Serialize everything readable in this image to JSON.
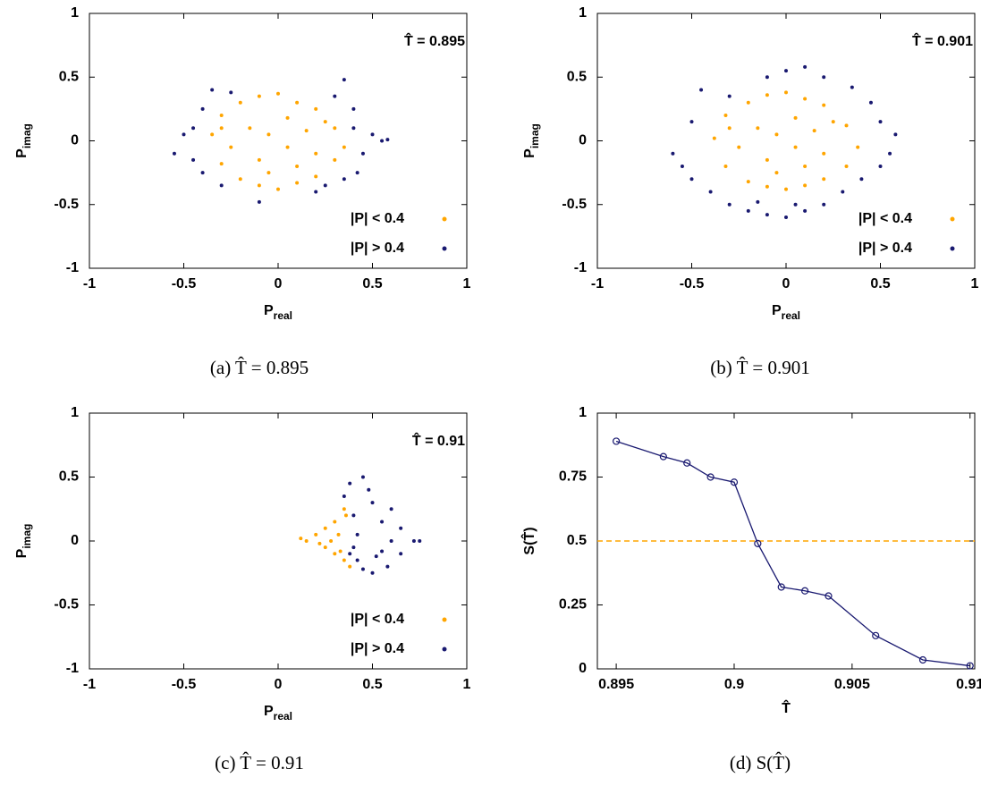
{
  "chart_data": [
    {
      "type": "scatter",
      "annotation": "T̂ = 0.895",
      "caption": "(a) T̂ = 0.895",
      "xlabel": {
        "base": "P",
        "subscript": "real"
      },
      "ylabel": {
        "base": "P",
        "subscript": "imag"
      },
      "xlim": [
        -1,
        1
      ],
      "ylim": [
        -1,
        1
      ],
      "xticks": [
        -1,
        -0.5,
        0,
        0.5,
        1
      ],
      "yticks": [
        -1,
        -0.5,
        0,
        0.5,
        1
      ],
      "legend": "lower right",
      "series": [
        {
          "name": "|P| < 0.4",
          "color": "#ffa500",
          "x": [
            -0.35,
            -0.3,
            -0.2,
            -0.1,
            0,
            0.1,
            0.2,
            0.3,
            0.35,
            0.3,
            0.2,
            0.1,
            0,
            -0.1,
            -0.2,
            -0.3,
            -0.15,
            -0.05,
            0.05,
            0.15,
            -0.25,
            0.2,
            -0.1,
            0.05,
            -0.05,
            0.25,
            -0.3,
            0.1
          ],
          "y": [
            0.05,
            0.2,
            0.3,
            0.35,
            0.37,
            0.3,
            0.25,
            0.1,
            -0.05,
            -0.15,
            -0.28,
            -0.33,
            -0.38,
            -0.35,
            -0.3,
            -0.18,
            0.1,
            0.05,
            -0.05,
            0.08,
            -0.05,
            -0.1,
            -0.15,
            0.18,
            -0.25,
            0.15,
            0.1,
            -0.2
          ]
        },
        {
          "name": "|P| > 0.4",
          "color": "#191970",
          "x": [
            -0.55,
            -0.5,
            -0.45,
            -0.4,
            -0.35,
            -0.3,
            -0.25,
            0.2,
            0.3,
            0.35,
            0.4,
            0.45,
            0.5,
            0.55,
            0.58,
            0.42,
            0.35,
            -0.1,
            -0.4,
            0.4,
            0.25,
            -0.45
          ],
          "y": [
            -0.1,
            0.05,
            -0.15,
            0.25,
            0.4,
            -0.35,
            0.38,
            -0.4,
            0.35,
            0.48,
            0.1,
            -0.1,
            0.05,
            0,
            0.01,
            -0.25,
            -0.3,
            -0.48,
            -0.25,
            0.25,
            -0.35,
            0.1
          ]
        }
      ]
    },
    {
      "type": "scatter",
      "annotation": "T̂ = 0.901",
      "caption": "(b) T̂ = 0.901",
      "xlabel": {
        "base": "P",
        "subscript": "real"
      },
      "ylabel": {
        "base": "P",
        "subscript": "imag"
      },
      "xlim": [
        -1,
        1
      ],
      "ylim": [
        -1,
        1
      ],
      "xticks": [
        -1,
        -0.5,
        0,
        0.5,
        1
      ],
      "yticks": [
        -1,
        -0.5,
        0,
        0.5,
        1
      ],
      "legend": "lower right",
      "series": [
        {
          "name": "|P| < 0.4",
          "color": "#ffa500",
          "x": [
            -0.38,
            -0.32,
            -0.2,
            -0.1,
            0,
            0.1,
            0.2,
            0.32,
            0.38,
            0.32,
            0.2,
            0.1,
            0,
            -0.1,
            -0.2,
            -0.32,
            -0.15,
            -0.05,
            0.05,
            0.15,
            -0.25,
            0.2,
            -0.1,
            0.05,
            -0.05,
            0.25,
            -0.3,
            0.1
          ],
          "y": [
            0.02,
            0.2,
            0.3,
            0.36,
            0.38,
            0.33,
            0.28,
            0.12,
            -0.05,
            -0.2,
            -0.3,
            -0.35,
            -0.38,
            -0.36,
            -0.32,
            -0.2,
            0.1,
            0.05,
            -0.05,
            0.08,
            -0.05,
            -0.1,
            -0.15,
            0.18,
            -0.25,
            0.15,
            0.1,
            -0.2
          ]
        },
        {
          "name": "|P| > 0.4",
          "color": "#191970",
          "x": [
            -0.6,
            -0.55,
            -0.5,
            -0.45,
            -0.4,
            -0.3,
            -0.2,
            -0.1,
            0,
            0.1,
            0.2,
            0.3,
            0.4,
            0.5,
            0.55,
            0.58,
            0.5,
            0.45,
            0.35,
            0.2,
            0.1,
            0,
            -0.1,
            -0.3,
            -0.5,
            0.05,
            -0.15
          ],
          "y": [
            -0.1,
            -0.2,
            0.15,
            0.4,
            -0.4,
            -0.5,
            -0.55,
            -0.58,
            -0.6,
            -0.55,
            -0.5,
            -0.4,
            -0.3,
            -0.2,
            -0.1,
            0.05,
            0.15,
            0.3,
            0.42,
            0.5,
            0.58,
            0.55,
            0.5,
            0.35,
            -0.3,
            -0.5,
            -0.48
          ]
        }
      ]
    },
    {
      "type": "scatter",
      "annotation": "T̂ = 0.91",
      "caption": "(c) T̂ = 0.91",
      "xlabel": {
        "base": "P",
        "subscript": "real"
      },
      "ylabel": {
        "base": "P",
        "subscript": "imag"
      },
      "xlim": [
        -1,
        1
      ],
      "ylim": [
        -1,
        1
      ],
      "xticks": [
        -1,
        -0.5,
        0,
        0.5,
        1
      ],
      "yticks": [
        -1,
        -0.5,
        0,
        0.5,
        1
      ],
      "legend": "lower right",
      "series": [
        {
          "name": "|P| < 0.4",
          "color": "#ffa500",
          "x": [
            0.12,
            0.15,
            0.2,
            0.25,
            0.3,
            0.3,
            0.25,
            0.35,
            0.35,
            0.32,
            0.28,
            0.38,
            0.36,
            0.22,
            0.33
          ],
          "y": [
            0.02,
            0,
            0.05,
            0.1,
            0.15,
            -0.1,
            -0.05,
            0.25,
            -0.15,
            0.05,
            0,
            -0.2,
            0.2,
            -0.02,
            -0.08
          ]
        },
        {
          "name": "|P| > 0.4",
          "color": "#191970",
          "x": [
            0.38,
            0.45,
            0.35,
            0.5,
            0.6,
            0.4,
            0.55,
            0.65,
            0.42,
            0.6,
            0.72,
            0.75,
            0.4,
            0.55,
            0.65,
            0.42,
            0.58,
            0.45,
            0.5,
            0.38,
            0.48,
            0.52
          ],
          "y": [
            0.45,
            0.5,
            0.35,
            0.3,
            0.25,
            0.2,
            0.15,
            0.1,
            0.05,
            0,
            0,
            0,
            -0.05,
            -0.08,
            -0.1,
            -0.15,
            -0.2,
            -0.22,
            -0.25,
            -0.1,
            0.4,
            -0.12
          ]
        }
      ]
    },
    {
      "type": "line",
      "caption": "(d) S(T̂)",
      "xlabel": "T̂",
      "ylabel": "S(T̂)",
      "xlim": [
        0.8942,
        0.9102
      ],
      "ylim": [
        0,
        1
      ],
      "xticks": [
        0.895,
        0.9,
        0.905,
        0.91
      ],
      "yticks": [
        0,
        0.25,
        0.5,
        0.75,
        1
      ],
      "x": [
        0.895,
        0.897,
        0.898,
        0.899,
        0.9,
        0.901,
        0.902,
        0.903,
        0.904,
        0.906,
        0.908,
        0.91
      ],
      "values": [
        0.89,
        0.83,
        0.805,
        0.75,
        0.73,
        0.49,
        0.32,
        0.305,
        0.285,
        0.13,
        0.035,
        0.012
      ],
      "color": "#191970",
      "hline": {
        "value": 0.5,
        "color": "#ffa500",
        "dashed": true
      }
    }
  ]
}
